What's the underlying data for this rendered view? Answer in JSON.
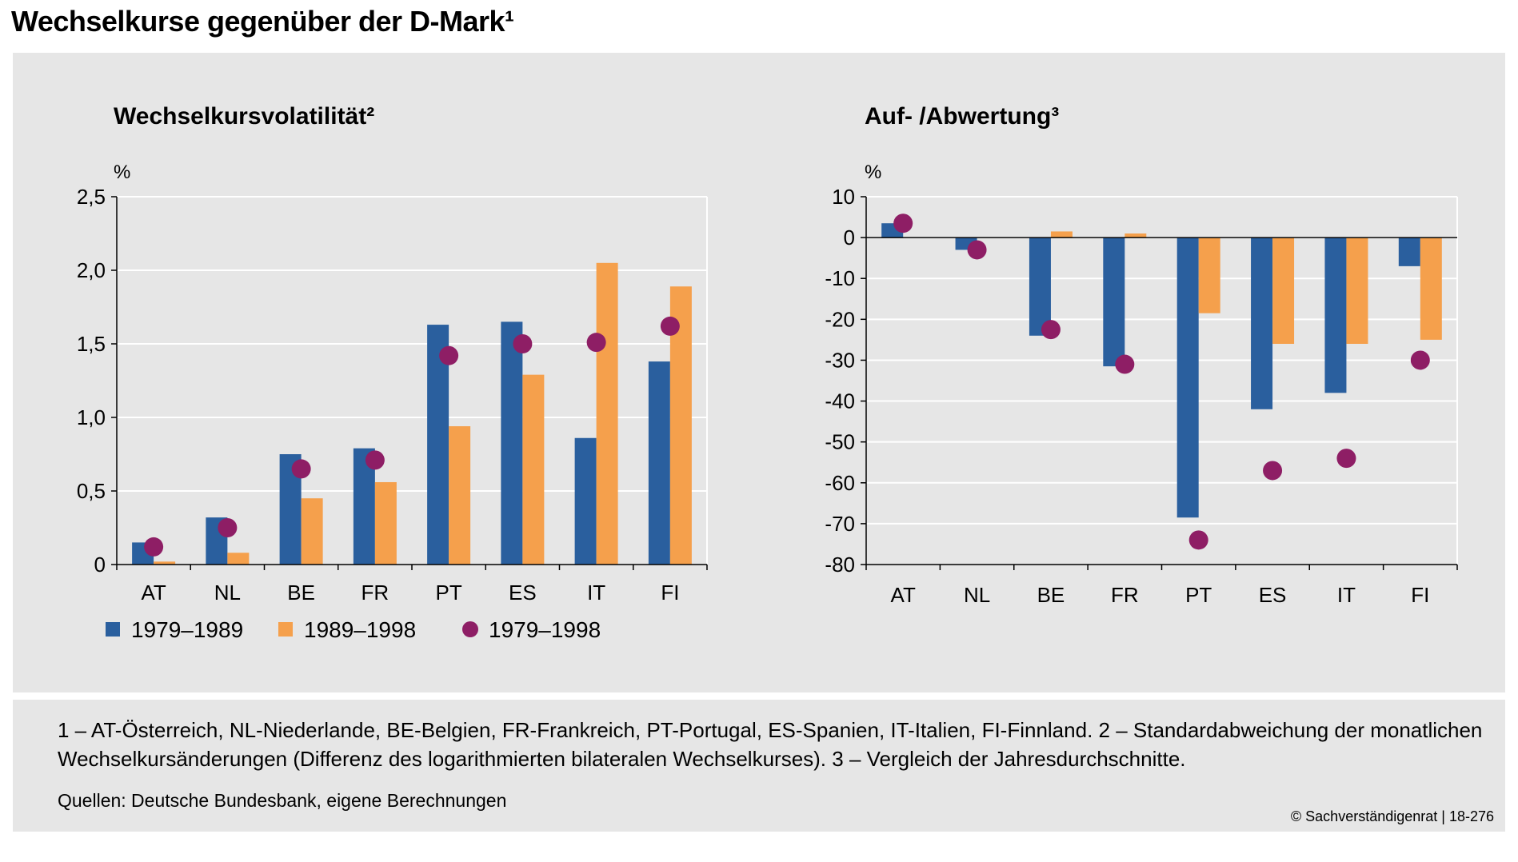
{
  "title": "Wechselkurse gegenüber der D-Mark¹",
  "colors": {
    "series1": "#2a5f9e",
    "series2": "#f5a04c",
    "dots": "#8e1e65",
    "panel": "#e6e6e6"
  },
  "legend": [
    {
      "label": "1979–1989",
      "marker": "square"
    },
    {
      "label": "1989–1998",
      "marker": "square"
    },
    {
      "label": "1979–1998",
      "marker": "circle"
    }
  ],
  "chart_data": [
    {
      "type": "bar",
      "title": "Wechselkursvolatilität²",
      "unit": "%",
      "categories": [
        "AT",
        "NL",
        "BE",
        "FR",
        "PT",
        "ES",
        "IT",
        "FI"
      ],
      "ylim": [
        0,
        2.5
      ],
      "yticks": [
        "0",
        "0,5",
        "1,0",
        "1,5",
        "2,0",
        "2,5"
      ],
      "ytick_values": [
        0,
        0.5,
        1.0,
        1.5,
        2.0,
        2.5
      ],
      "series": [
        {
          "name": "1979–1989",
          "kind": "bar",
          "values": [
            0.15,
            0.32,
            0.75,
            0.79,
            1.63,
            1.65,
            0.86,
            1.38
          ]
        },
        {
          "name": "1989–1998",
          "kind": "bar",
          "values": [
            0.02,
            0.08,
            0.45,
            0.56,
            0.94,
            1.29,
            2.05,
            1.89
          ]
        },
        {
          "name": "1979–1998",
          "kind": "dot",
          "values": [
            0.12,
            0.25,
            0.65,
            0.71,
            1.42,
            1.5,
            1.51,
            1.62
          ]
        }
      ]
    },
    {
      "type": "bar",
      "title": "Auf- /Abwertung³",
      "unit": "%",
      "categories": [
        "AT",
        "NL",
        "BE",
        "FR",
        "PT",
        "ES",
        "IT",
        "FI"
      ],
      "ylim": [
        -80,
        10
      ],
      "yticks": [
        "-80",
        "-70",
        "-60",
        "-50",
        "-40",
        "-30",
        "-20",
        "-10",
        "0",
        "10"
      ],
      "ytick_values": [
        -80,
        -70,
        -60,
        -50,
        -40,
        -30,
        -20,
        -10,
        0,
        10
      ],
      "series": [
        {
          "name": "1979–1989",
          "kind": "bar",
          "values": [
            3.5,
            -3,
            -24,
            -31.5,
            -68.5,
            -42,
            -38,
            -7
          ]
        },
        {
          "name": "1989–1998",
          "kind": "bar",
          "values": [
            0,
            0,
            1.5,
            1,
            -18.5,
            -26,
            -26,
            -25
          ]
        },
        {
          "name": "1979–1998",
          "kind": "dot",
          "values": [
            3.5,
            -3,
            -22.5,
            -31,
            -74,
            -57,
            -54,
            -30
          ]
        }
      ]
    }
  ],
  "footnote": "1 – AT-Österreich, NL-Niederlande, BE-Belgien, FR-Frankreich, PT-Portugal, ES-Spanien, IT-Italien, FI-Finnland.  2 – Standardabweichung der monatlichen Wechselkursänderungen (Differenz des logarithmierten bilateralen Wechselkurses).  3 – Vergleich der Jahresdurchschnitte.",
  "sources": "Quellen: Deutsche Bundesbank, eigene Berechnungen",
  "copyright": "© Sachverständigenrat | 18-276"
}
